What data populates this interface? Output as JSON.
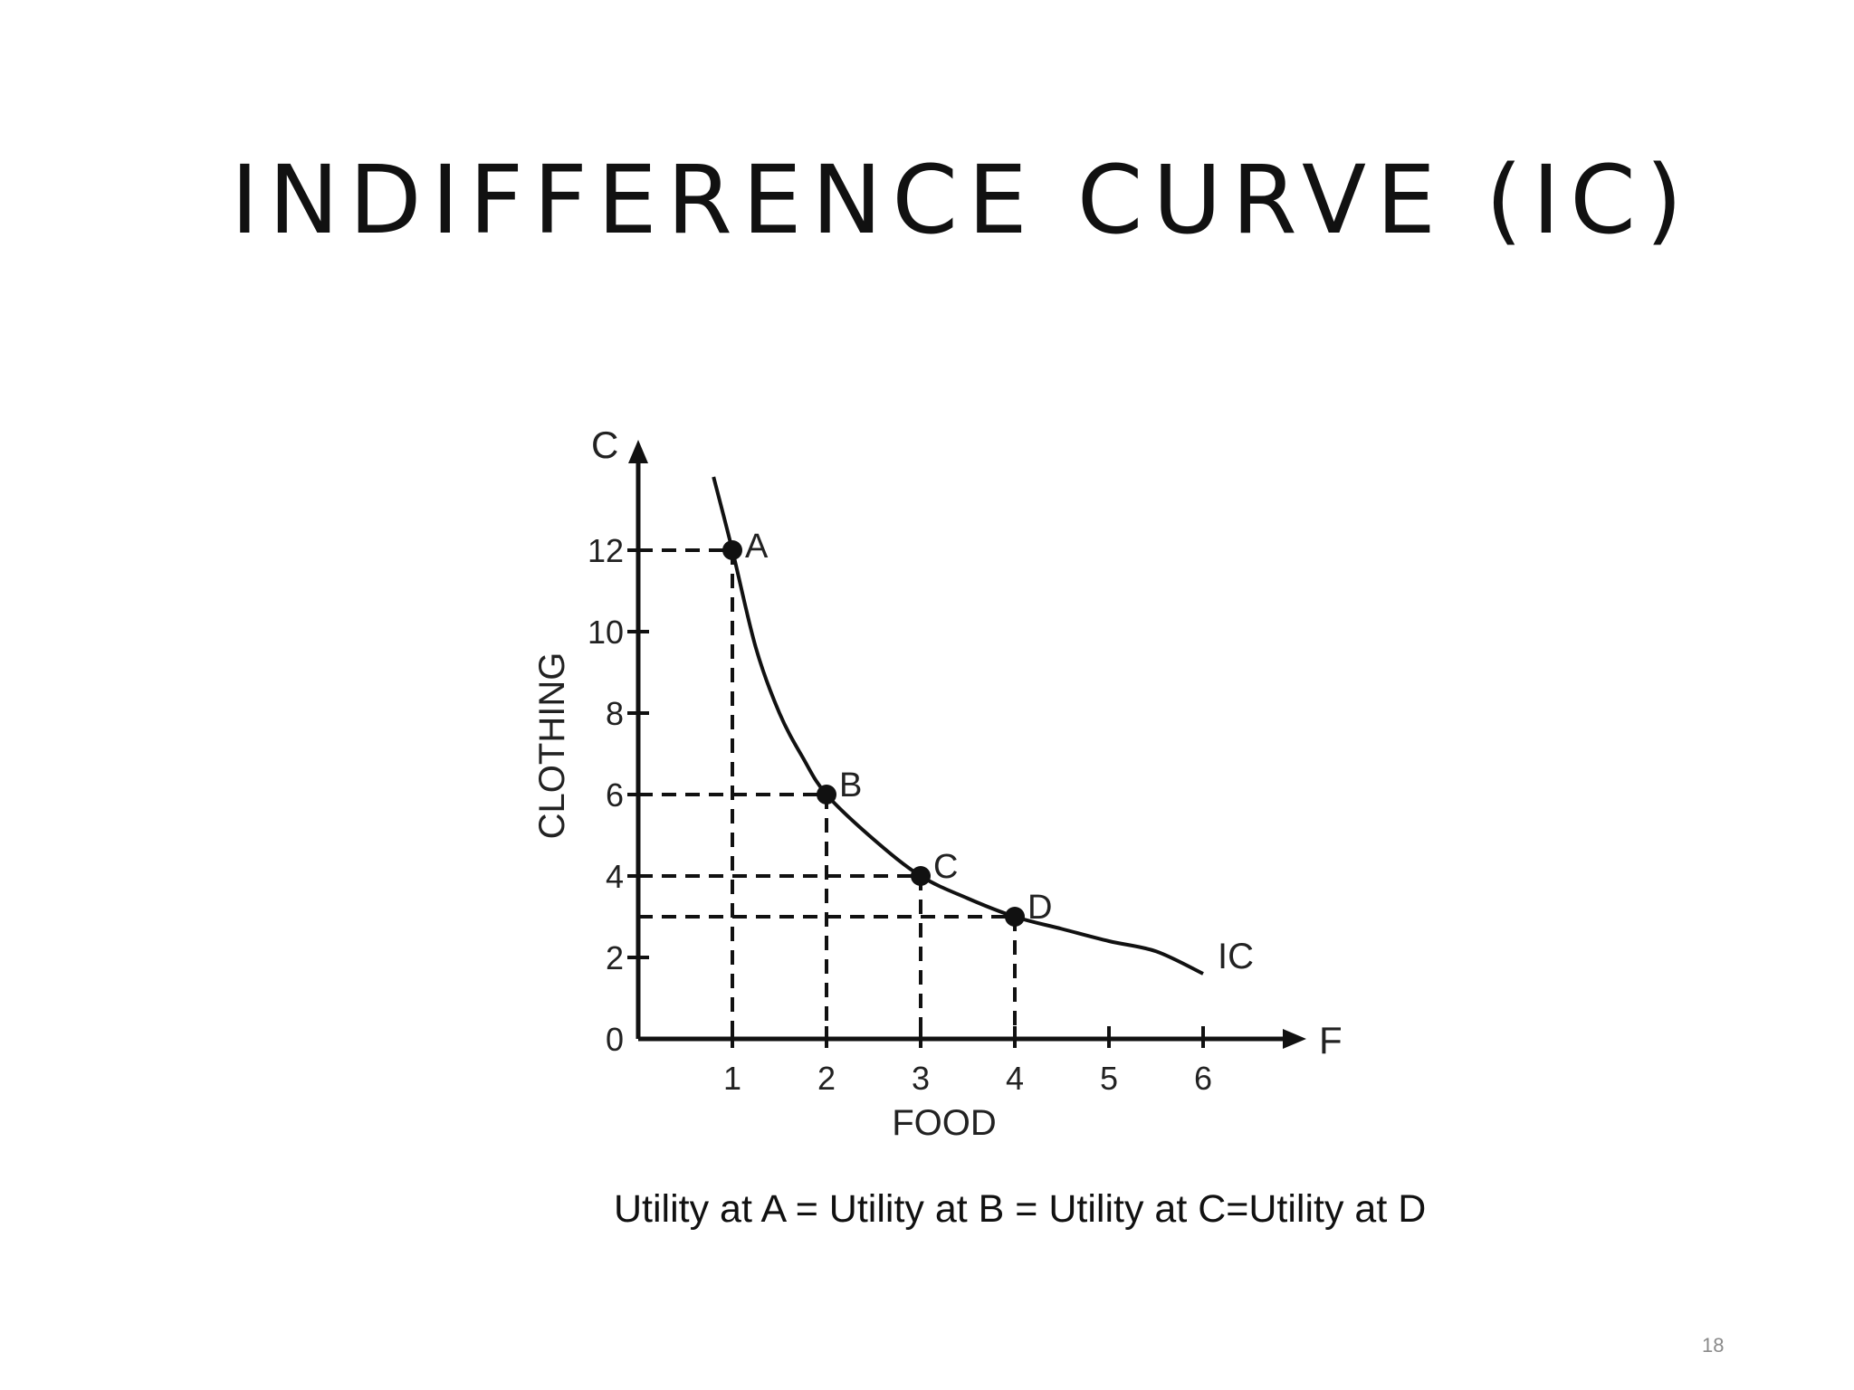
{
  "slide": {
    "title": "INDIFFERENCE CURVE  (IC)",
    "caption": "Utility at A = Utility at B = Utility at C=Utility at D",
    "page_number": "18"
  },
  "chart_data": {
    "type": "line",
    "title": "",
    "xlabel": "FOOD",
    "ylabel": "CLOTHING",
    "x_axis_letter": "F",
    "y_axis_letter": "C",
    "xlim": [
      0,
      6.5
    ],
    "ylim": [
      0,
      14
    ],
    "x_ticks": [
      1,
      2,
      3,
      4,
      5,
      6
    ],
    "y_ticks": [
      0,
      2,
      4,
      6,
      8,
      10,
      12
    ],
    "grid": false,
    "series": [
      {
        "name": "IC",
        "x": [
          0.8,
          1,
          1.25,
          1.5,
          1.75,
          2,
          2.5,
          3,
          3.5,
          4,
          4.5,
          5,
          5.5,
          6
        ],
        "values": [
          13.8,
          12,
          9.6,
          8.0,
          6.9,
          6,
          4.9,
          4,
          3.45,
          3,
          2.7,
          2.4,
          2.15,
          1.6
        ]
      }
    ],
    "points": [
      {
        "label": "A",
        "x": 1,
        "y": 12
      },
      {
        "label": "B",
        "x": 2,
        "y": 6
      },
      {
        "label": "C",
        "x": 3,
        "y": 4
      },
      {
        "label": "D",
        "x": 4,
        "y": 3
      }
    ],
    "colors": {
      "ink": "#111111"
    }
  }
}
